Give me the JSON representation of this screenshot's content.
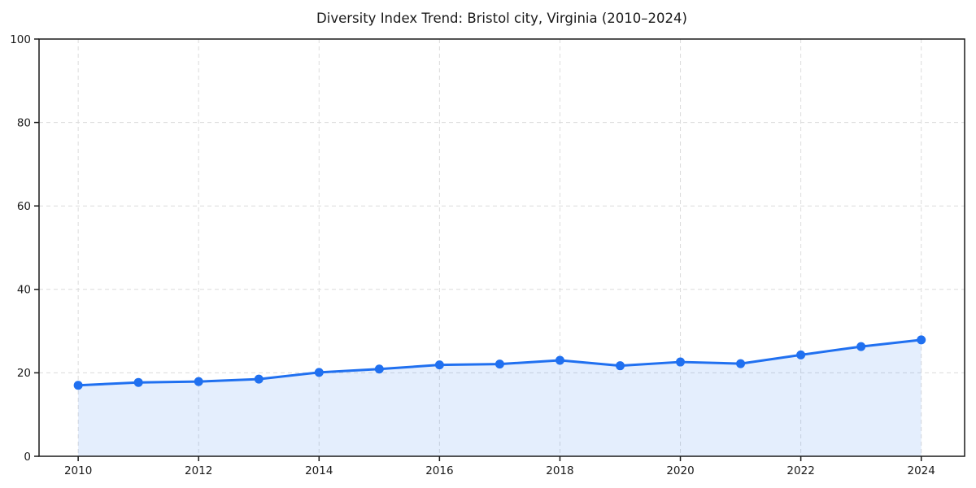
{
  "chart_data": {
    "type": "area",
    "title": "Diversity Index Trend: Bristol city, Virginia (2010–2024)",
    "xlabel": "",
    "ylabel": "",
    "x": [
      2010,
      2011,
      2012,
      2013,
      2014,
      2015,
      2016,
      2017,
      2018,
      2019,
      2020,
      2021,
      2022,
      2023,
      2024
    ],
    "series": [
      {
        "name": "Diversity Index",
        "values": [
          17.0,
          17.7,
          17.9,
          18.5,
          20.1,
          20.9,
          21.9,
          22.1,
          23.0,
          21.7,
          22.6,
          22.2,
          24.3,
          26.3,
          27.9
        ]
      }
    ],
    "xlim": [
      2009.35,
      2024.72
    ],
    "ylim": [
      0,
      100
    ],
    "xticks": [
      2010,
      2012,
      2014,
      2016,
      2018,
      2020,
      2022,
      2024
    ],
    "yticks": [
      0,
      20,
      40,
      60,
      80,
      100
    ],
    "grid": {
      "visible": true,
      "style": "dashed",
      "color": "#dcdcdc"
    },
    "legend": "none",
    "colors": {
      "line": "#2070f0",
      "marker": "#2070f0",
      "area_fill": "#2070f0",
      "area_opacity": 0.12,
      "axis": "#1a1a1a",
      "text": "#1a1a1a",
      "background": "#ffffff"
    }
  }
}
